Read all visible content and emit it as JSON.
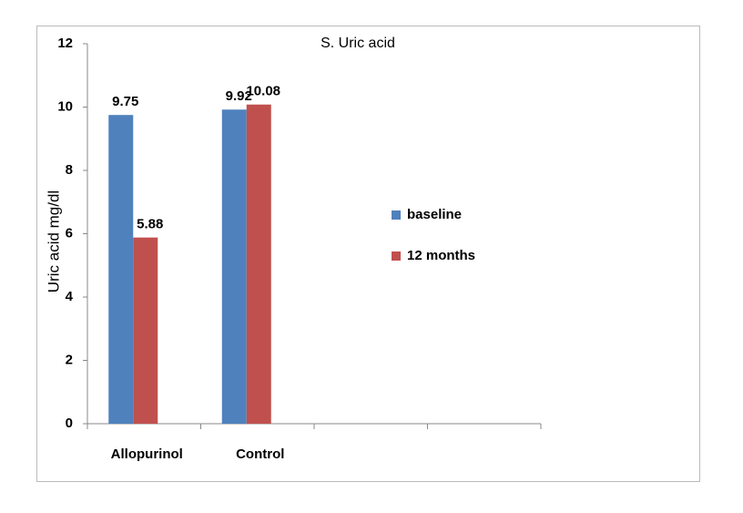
{
  "chart_data": {
    "type": "bar",
    "title": "S. Uric acid",
    "y_label": "Uric acid mg/dl",
    "categories": [
      "Allopurinol",
      "Control",
      null,
      null
    ],
    "series": [
      {
        "name": "baseline",
        "color": "#4f81bd",
        "values": [
          9.75,
          9.92,
          null,
          null
        ]
      },
      {
        "name": "12 months",
        "color": "#c0504d",
        "values": [
          5.88,
          10.08,
          null,
          null
        ]
      }
    ],
    "ylim": [
      0,
      12
    ],
    "yticks": [
      0,
      2,
      4,
      6,
      8,
      10,
      12
    ],
    "grid": false,
    "legend": "right"
  }
}
